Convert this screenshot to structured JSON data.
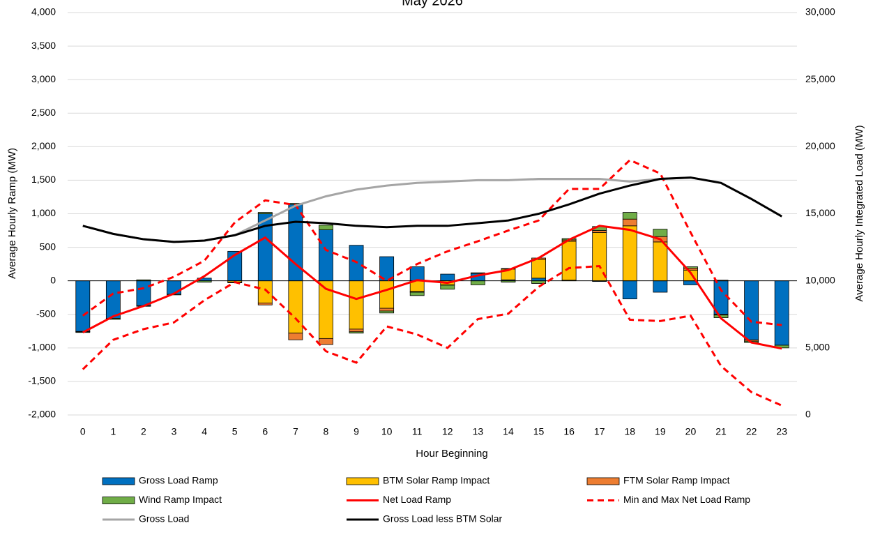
{
  "chart_data": {
    "type": "bar",
    "title": "May 2026",
    "x_label": "Hour Beginning",
    "y_label": "Average Hourly Ramp (MW)",
    "y2_label": "Average Hourly Integrated Load (MW)",
    "categories": [
      "0",
      "1",
      "2",
      "3",
      "4",
      "5",
      "6",
      "7",
      "8",
      "9",
      "10",
      "11",
      "12",
      "13",
      "14",
      "15",
      "16",
      "17",
      "18",
      "19",
      "20",
      "21",
      "22",
      "23"
    ],
    "ylim": [
      -2000,
      4000
    ],
    "yticks": [
      {
        "value": -2000,
        "label": "-2,000"
      },
      {
        "value": -1500,
        "label": "-1,500"
      },
      {
        "value": -1000,
        "label": "-1,000"
      },
      -500,
      0,
      500,
      {
        "value": 1000,
        "label": "1,000"
      },
      {
        "value": 1500,
        "label": "1,500"
      },
      {
        "value": 2000,
        "label": "2,000"
      },
      {
        "value": 2500,
        "label": "2,500"
      },
      {
        "value": 3000,
        "label": "3,000"
      },
      {
        "value": 3500,
        "label": "3,500"
      },
      {
        "value": 4000,
        "label": "4,000"
      }
    ],
    "y2lim": [
      0,
      30000
    ],
    "y2ticks": [
      0,
      {
        "value": 5000,
        "label": "5,000"
      },
      {
        "value": 10000,
        "label": "10,000"
      },
      {
        "value": 15000,
        "label": "15,000"
      },
      {
        "value": 20000,
        "label": "20,000"
      },
      {
        "value": 25000,
        "label": "25,000"
      },
      {
        "value": 30000,
        "label": "30,000"
      }
    ],
    "grid": true,
    "series": [
      {
        "name": "Gross Load Ramp",
        "kind": "bar",
        "color": "#0070c0",
        "values": [
          -755,
          -560,
          -370,
          -200,
          40,
          440,
          1000,
          1140,
          760,
          530,
          360,
          210,
          100,
          110,
          15,
          40,
          10,
          -10,
          -270,
          -170,
          -60,
          -500,
          -880,
          -960
        ]
      },
      {
        "name": "BTM Solar Ramp Impact",
        "kind": "bar",
        "color": "#ffc000",
        "values": [
          0,
          0,
          0,
          0,
          0,
          -20,
          -330,
          -780,
          -860,
          -720,
          -410,
          -160,
          -60,
          10,
          160,
          280,
          580,
          720,
          820,
          580,
          160,
          10,
          0,
          0
        ]
      },
      {
        "name": "FTM Solar Ramp Impact",
        "kind": "bar",
        "color": "#ed7d31",
        "values": [
          -5,
          0,
          -10,
          0,
          0,
          -10,
          -30,
          -100,
          -90,
          -40,
          -40,
          -10,
          -5,
          0,
          10,
          20,
          20,
          30,
          100,
          80,
          30,
          -10,
          -20,
          0
        ]
      },
      {
        "name": "Wind Ramp Impact",
        "kind": "bar",
        "color": "#70ad47",
        "values": [
          -10,
          -15,
          15,
          -10,
          -20,
          0,
          20,
          15,
          70,
          -20,
          -30,
          -50,
          -60,
          -60,
          -20,
          -40,
          20,
          60,
          100,
          110,
          20,
          -40,
          -20,
          -40
        ]
      },
      {
        "name": "Net Load Ramp",
        "kind": "line",
        "color": "#ff0000",
        "values": [
          -770,
          -530,
          -375,
          -190,
          70,
          385,
          645,
          250,
          -120,
          -270,
          -135,
          10,
          -30,
          80,
          160,
          340,
          613,
          820,
          760,
          620,
          120,
          -560,
          -920,
          -1010
        ]
      },
      {
        "name": "Min and Max Net Load Ramp",
        "kind": "dashed",
        "color": "#ff0000",
        "min": [
          -1320,
          -880,
          -720,
          -620,
          -290,
          -20,
          -130,
          -560,
          -1050,
          -1220,
          -680,
          -800,
          -1000,
          -570,
          -490,
          -90,
          190,
          220,
          -580,
          -600,
          -520,
          -1270,
          -1660,
          -1860
        ],
        "max": [
          -520,
          -190,
          -110,
          60,
          300,
          870,
          1200,
          1130,
          460,
          280,
          0,
          250,
          440,
          590,
          750,
          900,
          1370,
          1370,
          1800,
          1600,
          720,
          -140,
          -610,
          -660
        ]
      },
      {
        "name": "Gross Load",
        "kind": "line",
        "axis": "y2",
        "color": "#a5a5a5",
        "values": [
          14100,
          13500,
          13100,
          12900,
          13000,
          13400,
          14500,
          15600,
          16300,
          16800,
          17100,
          17300,
          17400,
          17500,
          17500,
          17600,
          17600,
          17600,
          17400,
          17600,
          17700,
          17300,
          16100,
          14800
        ]
      },
      {
        "name": "Gross Load less BTM Solar",
        "kind": "line",
        "axis": "y2",
        "color": "#000000",
        "values": [
          14100,
          13500,
          13100,
          12900,
          13000,
          13400,
          14100,
          14400,
          14300,
          14100,
          14000,
          14100,
          14100,
          14300,
          14500,
          15000,
          15700,
          16500,
          17100,
          17600,
          17700,
          17300,
          16100,
          14800
        ]
      }
    ]
  }
}
